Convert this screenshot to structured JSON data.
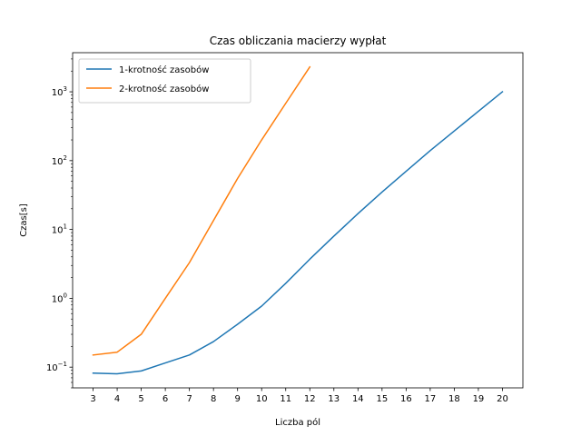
{
  "chart_data": {
    "type": "line",
    "title": "Czas obliczania macierzy wypłat",
    "xlabel": "Liczba pól",
    "ylabel": "Czas[s]",
    "x_ticks": [
      3,
      4,
      5,
      6,
      7,
      8,
      9,
      10,
      11,
      12,
      13,
      14,
      15,
      16,
      17,
      18,
      19,
      20
    ],
    "xlim": [
      2.15,
      20.85
    ],
    "y_scale": "log",
    "ylim": [
      0.05,
      3700
    ],
    "y_tick_labels": [
      {
        "value": 0.1,
        "base": "10",
        "exp": "−1"
      },
      {
        "value": 1,
        "base": "10",
        "exp": "0"
      },
      {
        "value": 10,
        "base": "10",
        "exp": "1"
      },
      {
        "value": 100,
        "base": "10",
        "exp": "2"
      },
      {
        "value": 1000,
        "base": "10",
        "exp": "3"
      }
    ],
    "grid": false,
    "legend_position": "upper-left",
    "series": [
      {
        "name": "1-krotność zasobów",
        "color": "#1f77b4",
        "x": [
          3,
          4,
          5,
          6,
          7,
          8,
          9,
          10,
          11,
          12,
          13,
          14,
          15,
          16,
          17,
          18,
          19,
          20
        ],
        "y": [
          0.082,
          0.08,
          0.088,
          0.115,
          0.15,
          0.235,
          0.42,
          0.77,
          1.65,
          3.7,
          8.0,
          17,
          35,
          70,
          140,
          270,
          520,
          1000
        ]
      },
      {
        "name": "2-krotność zasobów",
        "color": "#ff7f0e",
        "x": [
          3,
          4,
          5,
          6,
          7,
          8,
          9,
          10,
          11,
          12
        ],
        "y": [
          0.15,
          0.165,
          0.3,
          1.0,
          3.3,
          13.5,
          55,
          200,
          680,
          2300
        ]
      }
    ]
  }
}
